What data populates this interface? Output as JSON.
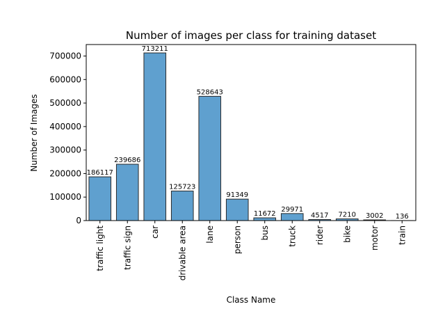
{
  "chart_data": {
    "type": "bar",
    "title": "Number of images per class for training dataset",
    "xlabel": "Class Name",
    "ylabel": "Number of Images",
    "categories": [
      "traffic light",
      "traffic sign",
      "car",
      "drivable area",
      "lane",
      "person",
      "bus",
      "truck",
      "rider",
      "bike",
      "motor",
      "train"
    ],
    "values": [
      186117,
      239686,
      713211,
      125723,
      528643,
      91349,
      11672,
      29971,
      4517,
      7210,
      3002,
      136
    ],
    "data_labels": [
      "186117",
      "239686",
      "713211",
      "125723",
      "528643",
      "91349",
      "11672",
      "29971",
      "4517",
      "7210",
      "3002",
      "136"
    ],
    "ylim": [
      0,
      748872
    ],
    "yticks": [
      0,
      100000,
      200000,
      300000,
      400000,
      500000,
      600000,
      700000
    ],
    "ytick_labels": [
      "0",
      "100000",
      "200000",
      "300000",
      "400000",
      "500000",
      "600000",
      "700000"
    ],
    "grid": false,
    "bar_color": "#5fa0cf",
    "bar_edge_color": "#2b2b2b"
  }
}
